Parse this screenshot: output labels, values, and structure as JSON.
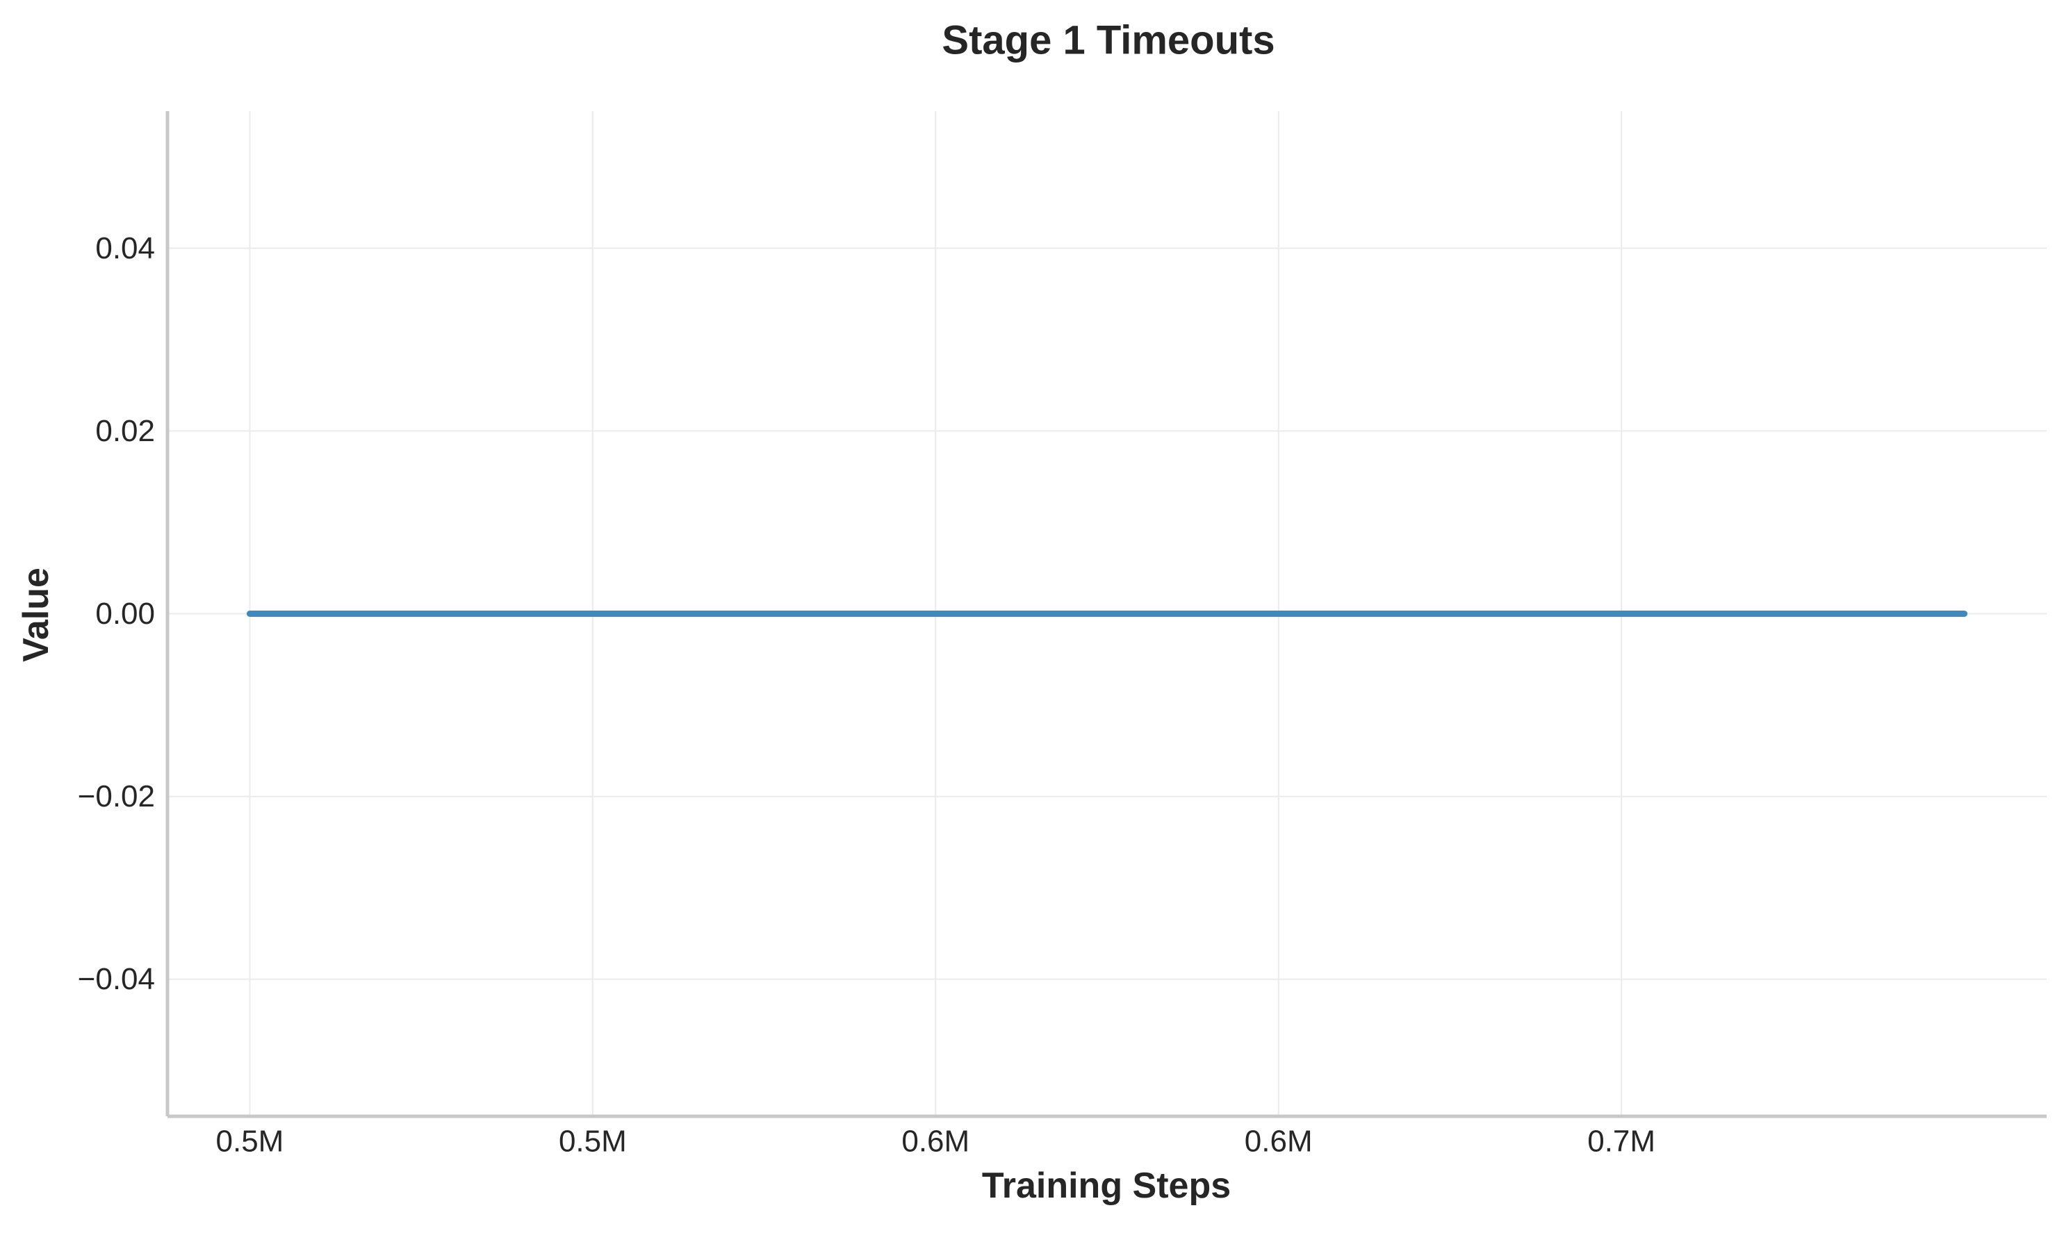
{
  "chart_data": {
    "type": "line",
    "title": "Stage 1 Timeouts",
    "xlabel": "Training Steps",
    "ylabel": "Value",
    "xlim": [
      463000,
      737000
    ],
    "ylim": [
      -0.055,
      0.055
    ],
    "x_ticks": [
      {
        "value": 475000,
        "label": "0.5M"
      },
      {
        "value": 525000,
        "label": "0.5M"
      },
      {
        "value": 575000,
        "label": "0.6M"
      },
      {
        "value": 625000,
        "label": "0.6M"
      },
      {
        "value": 675000,
        "label": "0.7M"
      }
    ],
    "y_ticks": [
      {
        "value": -0.04,
        "label": "−0.04"
      },
      {
        "value": -0.02,
        "label": "−0.02"
      },
      {
        "value": 0.0,
        "label": "0.00"
      },
      {
        "value": 0.02,
        "label": "0.02"
      },
      {
        "value": 0.04,
        "label": "0.04"
      }
    ],
    "grid": true,
    "legend": "none",
    "series": [
      {
        "color": "#3c8abe",
        "x": [
          475000,
          525000,
          575000,
          625000,
          675000,
          700000,
          725000
        ],
        "y": [
          0,
          0,
          0,
          0,
          0,
          0,
          0
        ]
      }
    ]
  },
  "colors": {
    "line": "#3c8abe",
    "grid": "#ebebeb",
    "axis": "#c8c8c8",
    "text": "#262626"
  }
}
